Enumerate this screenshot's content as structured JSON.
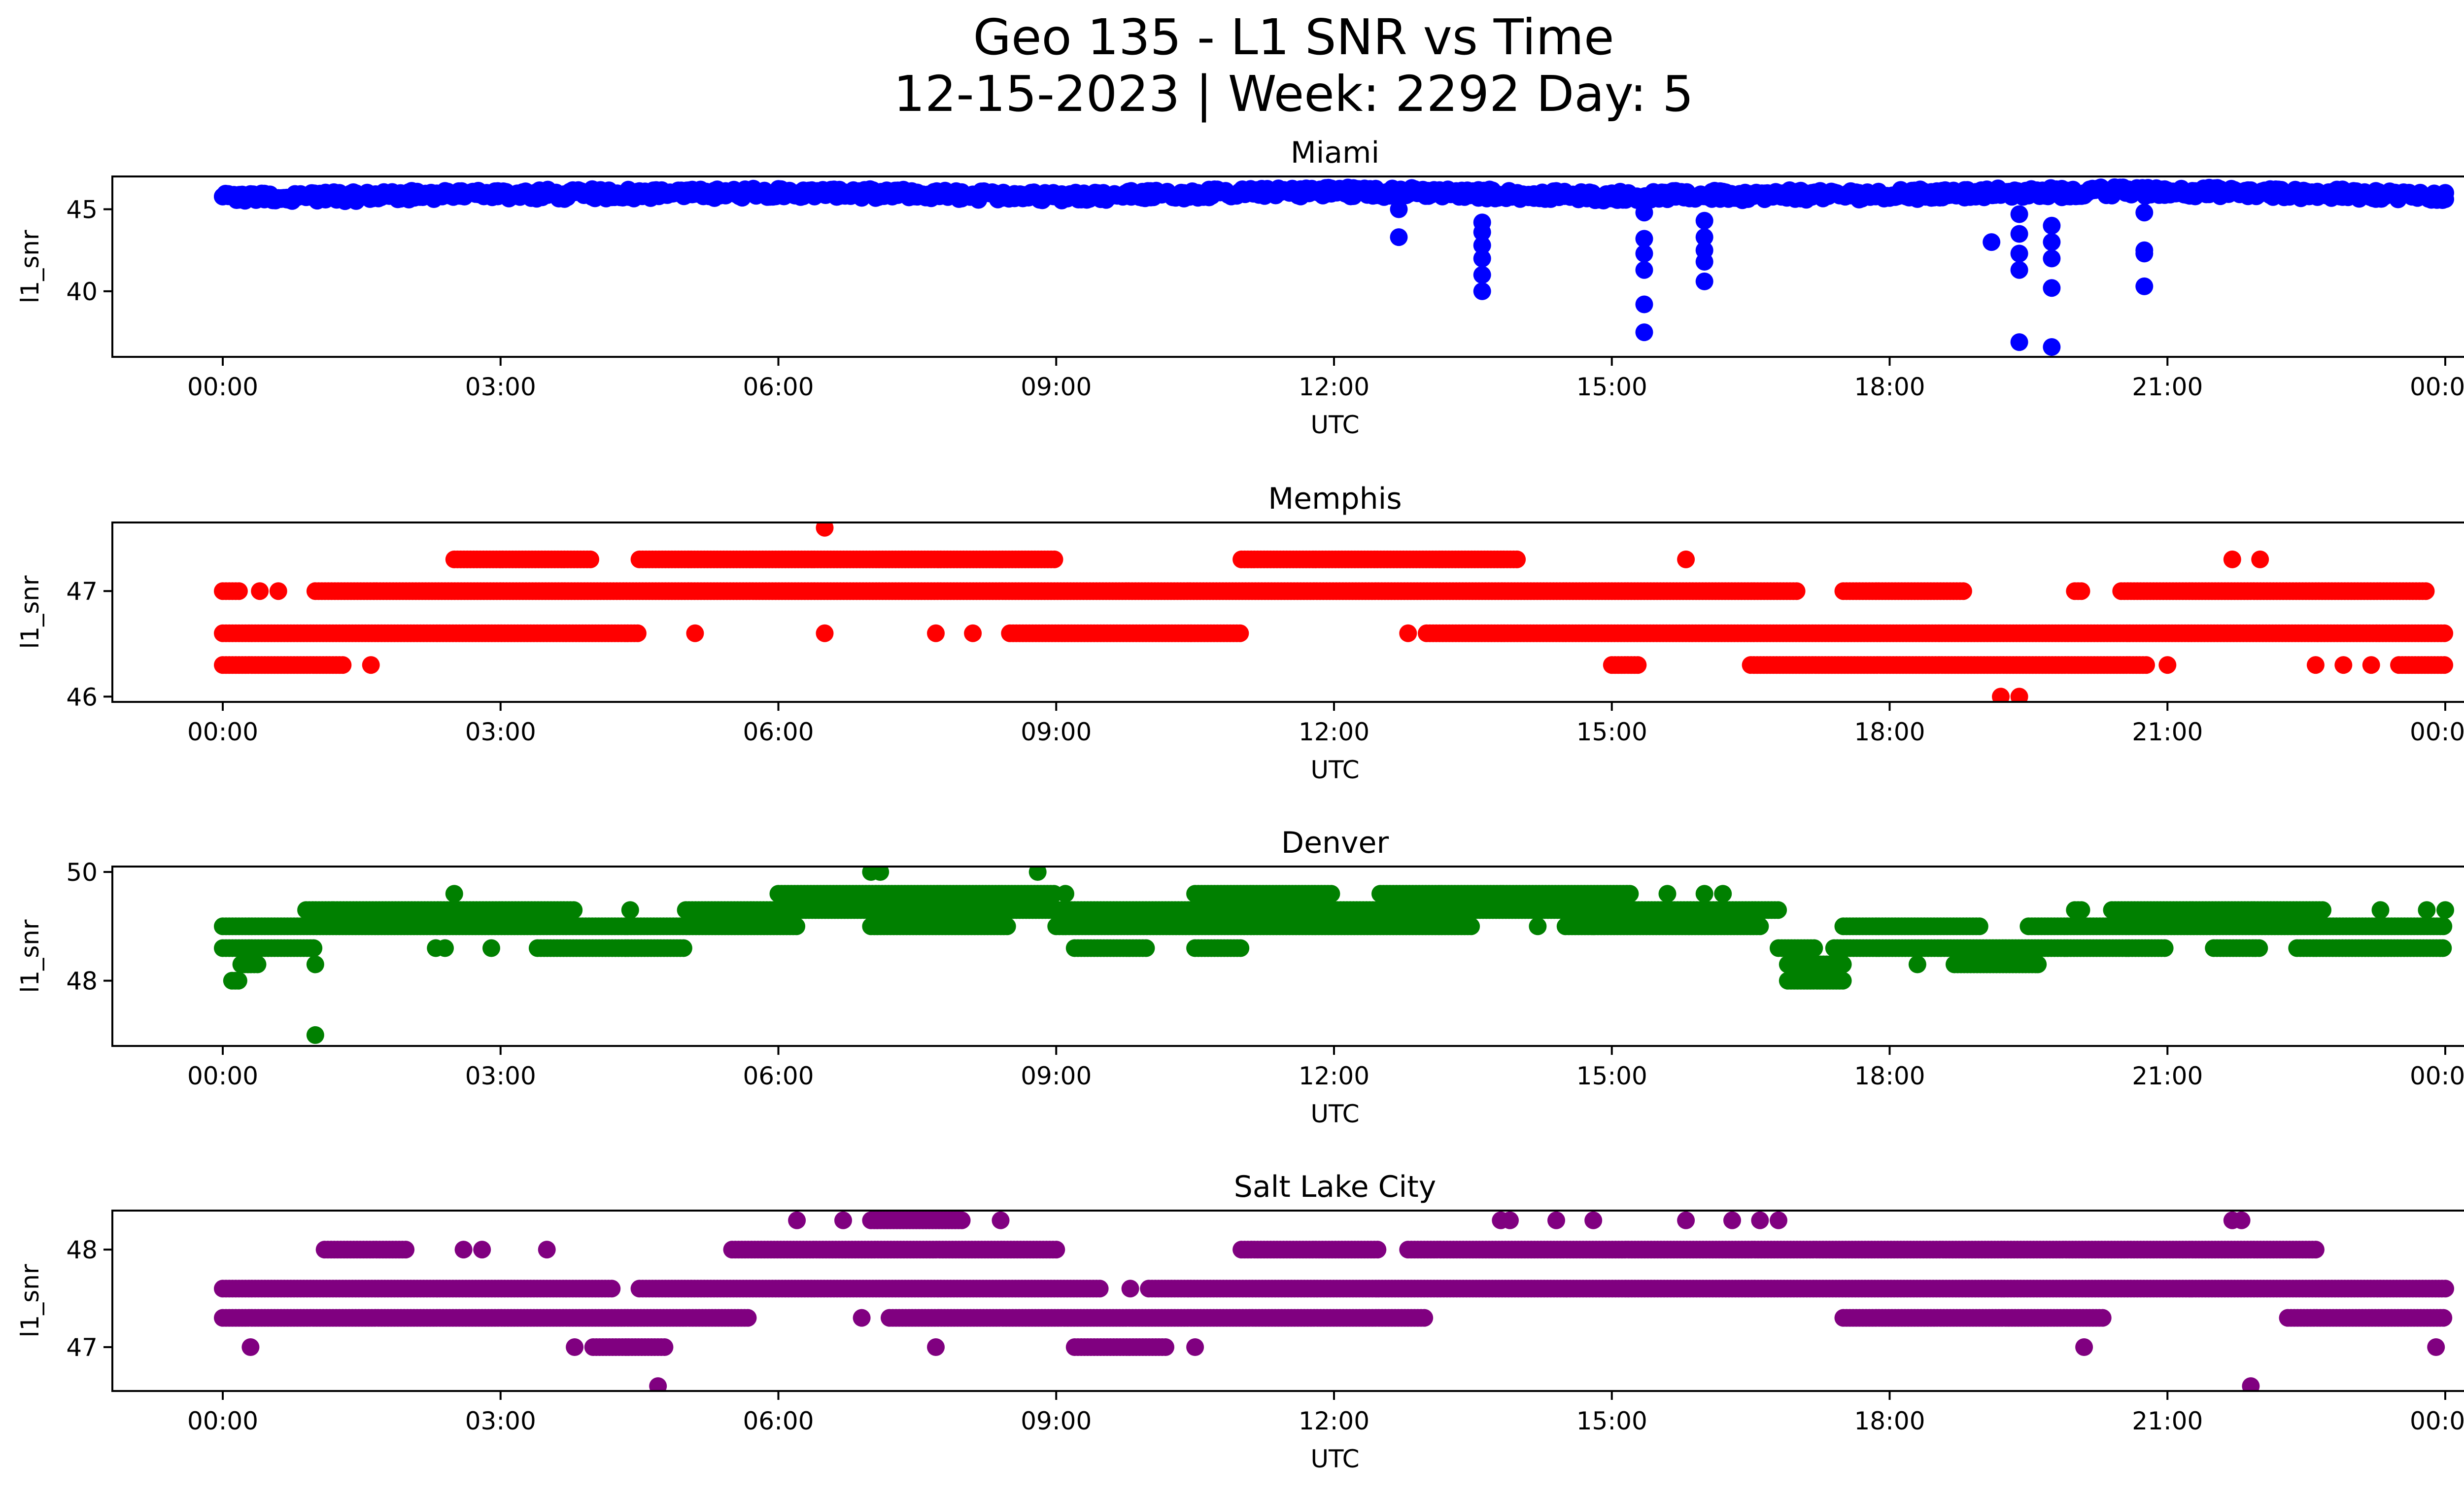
{
  "chart_data": {
    "title_line1": "Geo 135 - L1 SNR vs Time",
    "title_line2": "12-15-2023 | Week: 2292 Day: 5",
    "x_tick_labels": [
      "00:00",
      "03:00",
      "06:00",
      "09:00",
      "12:00",
      "15:00",
      "18:00",
      "21:00",
      "00:00"
    ],
    "panels": [
      {
        "type": "scatter",
        "title": "Miami",
        "xlabel": "UTC",
        "ylabel": "l1_snr",
        "color": "#0000ff",
        "ylim": [
          36,
          47.0
        ],
        "yticks": [
          40,
          45
        ],
        "baseline": [
          [
            0,
            45.7
          ],
          [
            3,
            45.9
          ],
          [
            6,
            46.0
          ],
          [
            9,
            45.8
          ],
          [
            12,
            46.1
          ],
          [
            15,
            45.8
          ],
          [
            18,
            45.9
          ],
          [
            21,
            46.1
          ],
          [
            24,
            45.8
          ]
        ],
        "spread": 0.5,
        "gaps": [],
        "rows": [],
        "extra_points": [
          [
            12.7,
            45.0
          ],
          [
            12.7,
            43.3
          ],
          [
            13.6,
            44.2
          ],
          [
            13.6,
            43.6
          ],
          [
            13.6,
            42.8
          ],
          [
            13.6,
            42.0
          ],
          [
            13.6,
            41.0
          ],
          [
            13.6,
            40.0
          ],
          [
            15.35,
            44.8
          ],
          [
            15.35,
            43.2
          ],
          [
            15.35,
            42.3
          ],
          [
            15.35,
            41.3
          ],
          [
            15.35,
            39.2
          ],
          [
            15.35,
            37.5
          ],
          [
            16.0,
            44.3
          ],
          [
            16.0,
            43.3
          ],
          [
            16.0,
            42.5
          ],
          [
            16.0,
            41.8
          ],
          [
            16.0,
            40.6
          ],
          [
            19.4,
            44.7
          ],
          [
            19.4,
            43.5
          ],
          [
            19.4,
            42.3
          ],
          [
            19.4,
            41.3
          ],
          [
            19.4,
            36.9
          ],
          [
            19.75,
            44.0
          ],
          [
            19.75,
            43.0
          ],
          [
            19.75,
            42.0
          ],
          [
            19.75,
            40.2
          ],
          [
            19.75,
            36.6
          ],
          [
            20.75,
            44.8
          ],
          [
            20.75,
            42.5
          ],
          [
            20.75,
            42.3
          ],
          [
            20.75,
            40.3
          ],
          [
            19.1,
            43.0
          ]
        ]
      },
      {
        "type": "scatter",
        "title": "Memphis",
        "xlabel": "UTC",
        "ylabel": "l1_snr",
        "color": "#ff0000",
        "ylim": [
          45.95,
          47.65
        ],
        "yticks": [
          46,
          47
        ],
        "baseline": [],
        "spread": 0,
        "gaps": [],
        "rows": [
          {
            "y": 47.3,
            "segments": [
              [
                2.5,
                4.0
              ],
              [
                4.5,
                9.0
              ],
              [
                11.0,
                14.0
              ]
            ]
          },
          {
            "y": 47.0,
            "segments": [
              [
                0.0,
                0.2
              ],
              [
                1.0,
                17.0
              ],
              [
                17.5,
                18.8
              ],
              [
                20.0,
                20.1
              ],
              [
                20.5,
                23.8
              ]
            ]
          },
          {
            "y": 46.6,
            "segments": [
              [
                0.0,
                4.5
              ],
              [
                8.5,
                11.0
              ],
              [
                13.0,
                24.0
              ]
            ]
          },
          {
            "y": 46.3,
            "segments": [
              [
                0.0,
                1.3
              ],
              [
                15.0,
                15.3
              ],
              [
                16.5,
                20.8
              ],
              [
                23.5,
                24.0
              ]
            ]
          }
        ],
        "extra_points": [
          [
            6.5,
            47.6
          ],
          [
            19.2,
            46.0
          ],
          [
            19.4,
            46.0
          ],
          [
            15.8,
            47.3
          ],
          [
            21.7,
            47.3
          ],
          [
            22.0,
            47.3
          ],
          [
            5.1,
            46.6
          ],
          [
            6.5,
            46.6
          ],
          [
            7.7,
            46.6
          ],
          [
            8.1,
            46.6
          ],
          [
            12.8,
            46.6
          ],
          [
            1.6,
            46.3
          ],
          [
            0.4,
            47.0
          ],
          [
            0.6,
            47.0
          ],
          [
            21.0,
            46.3
          ],
          [
            22.6,
            46.3
          ],
          [
            22.9,
            46.3
          ],
          [
            23.2,
            46.3
          ]
        ]
      },
      {
        "type": "scatter",
        "title": "Denver",
        "xlabel": "UTC",
        "ylabel": "l1_snr",
        "color": "#008000",
        "ylim": [
          46.8,
          50.1
        ],
        "yticks": [
          48,
          50
        ],
        "baseline": [],
        "spread": 0,
        "gaps": [],
        "rows": [
          {
            "y": 49.6,
            "segments": [
              [
                6.0,
                9.0
              ],
              [
                10.5,
                12.0
              ],
              [
                12.5,
                15.2
              ]
            ]
          },
          {
            "y": 49.3,
            "segments": [
              [
                0.9,
                1.2
              ],
              [
                1.2,
                3.8
              ],
              [
                5.0,
                16.8
              ],
              [
                20.0,
                20.1
              ],
              [
                20.4,
                22.7
              ]
            ]
          },
          {
            "y": 49.0,
            "segments": [
              [
                0.0,
                6.2
              ],
              [
                7.0,
                8.5
              ],
              [
                9.0,
                13.5
              ],
              [
                14.5,
                16.6
              ],
              [
                17.5,
                19.0
              ],
              [
                19.5,
                24.0
              ]
            ]
          },
          {
            "y": 48.6,
            "segments": [
              [
                0.0,
                1.0
              ],
              [
                3.4,
                5.0
              ],
              [
                9.2,
                10.0
              ],
              [
                10.5,
                11.0
              ],
              [
                16.8,
                17.2
              ],
              [
                17.4,
                21.0
              ],
              [
                21.5,
                22.0
              ],
              [
                22.4,
                24.0
              ]
            ]
          },
          {
            "y": 48.3,
            "segments": [
              [
                0.2,
                0.4
              ],
              [
                16.9,
                17.5
              ],
              [
                18.7,
                19.6
              ]
            ]
          },
          {
            "y": 48.0,
            "segments": [
              [
                0.1,
                0.2
              ],
              [
                16.9,
                17.5
              ]
            ]
          }
        ],
        "extra_points": [
          [
            1.0,
            47.0
          ],
          [
            7.0,
            50.0
          ],
          [
            7.1,
            50.0
          ],
          [
            8.8,
            50.0
          ],
          [
            2.5,
            49.6
          ],
          [
            16.0,
            49.6
          ],
          [
            16.2,
            49.6
          ],
          [
            15.6,
            49.6
          ],
          [
            4.4,
            49.3
          ],
          [
            9.1,
            49.6
          ],
          [
            2.9,
            48.6
          ],
          [
            2.3,
            48.6
          ],
          [
            2.4,
            48.6
          ],
          [
            1.0,
            48.3
          ],
          [
            18.3,
            48.3
          ],
          [
            19.6,
            48.3
          ],
          [
            14.8,
            49.0
          ],
          [
            14.2,
            49.0
          ],
          [
            23.3,
            49.3
          ],
          [
            23.8,
            49.3
          ],
          [
            24.0,
            49.3
          ]
        ]
      },
      {
        "type": "scatter",
        "title": "Salt Lake City",
        "xlabel": "UTC",
        "ylabel": "l1_snr",
        "color": "#800080",
        "ylim": [
          46.55,
          48.4
        ],
        "yticks": [
          47,
          48
        ],
        "baseline": [],
        "spread": 0,
        "gaps": [],
        "rows": [
          {
            "y": 48.3,
            "segments": [
              [
                7.0,
                8.0
              ]
            ]
          },
          {
            "y": 48.0,
            "segments": [
              [
                1.1,
                2.0
              ],
              [
                5.5,
                9.0
              ],
              [
                11.0,
                12.5
              ],
              [
                12.8,
                22.6
              ]
            ]
          },
          {
            "y": 47.6,
            "segments": [
              [
                0.0,
                4.2
              ],
              [
                4.5,
                9.5
              ],
              [
                10.0,
                24.0
              ]
            ]
          },
          {
            "y": 47.3,
            "segments": [
              [
                0.0,
                5.7
              ],
              [
                7.2,
                13.0
              ],
              [
                17.5,
                20.3
              ],
              [
                22.3,
                24.0
              ]
            ]
          },
          {
            "y": 47.0,
            "segments": [
              [
                4.0,
                4.8
              ],
              [
                9.2,
                10.2
              ]
            ]
          }
        ],
        "extra_points": [
          [
            6.2,
            48.3
          ],
          [
            6.7,
            48.3
          ],
          [
            8.4,
            48.3
          ],
          [
            13.8,
            48.3
          ],
          [
            13.9,
            48.3
          ],
          [
            14.4,
            48.3
          ],
          [
            14.8,
            48.3
          ],
          [
            15.8,
            48.3
          ],
          [
            16.3,
            48.3
          ],
          [
            16.6,
            48.3
          ],
          [
            16.8,
            48.3
          ],
          [
            21.7,
            48.3
          ],
          [
            21.8,
            48.3
          ],
          [
            2.6,
            48.0
          ],
          [
            2.8,
            48.0
          ],
          [
            3.5,
            48.0
          ],
          [
            0.3,
            47.0
          ],
          [
            3.8,
            47.0
          ],
          [
            7.7,
            47.0
          ],
          [
            10.5,
            47.0
          ],
          [
            20.1,
            47.0
          ],
          [
            23.9,
            47.0
          ],
          [
            4.7,
            46.6
          ],
          [
            21.9,
            46.6
          ],
          [
            6.9,
            47.3
          ],
          [
            9.8,
            47.6
          ]
        ]
      }
    ]
  }
}
